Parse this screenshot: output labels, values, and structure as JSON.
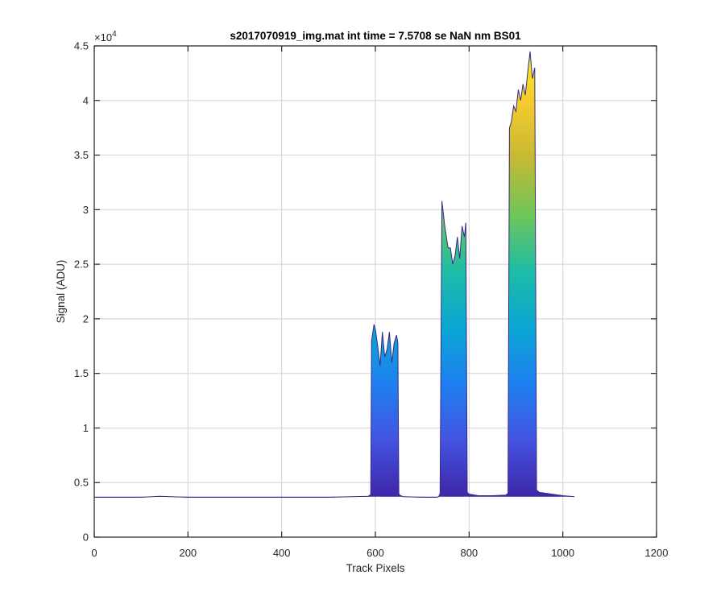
{
  "chart_data": {
    "type": "area",
    "title": "s2017070919_img.mat int time = 7.5708 se  NaN nm BS01",
    "xlabel": "Track Pixels",
    "ylabel": "Signal (ADU)",
    "y_exponent_label": "×10",
    "y_exponent_power": "4",
    "xlim": [
      0,
      1200
    ],
    "ylim": [
      0,
      45000
    ],
    "x_ticks": [
      0,
      200,
      400,
      600,
      800,
      1000,
      1200
    ],
    "x_tick_labels": [
      "0",
      "200",
      "400",
      "600",
      "800",
      "1000",
      "1200"
    ],
    "y_ticks": [
      0,
      5000,
      10000,
      15000,
      20000,
      25000,
      30000,
      35000,
      40000,
      45000
    ],
    "y_tick_labels": [
      "0",
      "0.5",
      "1",
      "1.5",
      "2",
      "2.5",
      "3",
      "3.5",
      "4",
      "4.5"
    ],
    "grid": true,
    "colormap": [
      "#3e26a8",
      "#4353e0",
      "#1e80f0",
      "#0ba6d3",
      "#1ebca6",
      "#6ec65a",
      "#c5b935",
      "#f5ca2d",
      "#f9f617"
    ],
    "baseline": 3700,
    "series": [
      {
        "x": [
          0,
          100,
          140,
          200,
          300,
          400,
          500,
          550,
          585,
          590,
          592,
          597,
          600,
          605,
          610,
          615,
          620,
          625,
          630,
          635,
          640,
          645,
          648,
          650,
          652,
          660,
          700,
          730,
          735,
          738,
          742,
          748,
          755,
          760,
          765,
          770,
          775,
          780,
          785,
          790,
          793,
          796,
          800,
          820,
          850,
          878,
          883,
          886,
          890,
          895,
          900,
          905,
          910,
          915,
          920,
          925,
          930,
          935,
          940,
          944,
          950,
          1000,
          1025
        ],
        "y": [
          3650,
          3650,
          3750,
          3650,
          3650,
          3650,
          3650,
          3700,
          3750,
          3900,
          18000,
          19500,
          19000,
          17500,
          15700,
          18800,
          16500,
          17200,
          18800,
          16000,
          17800,
          18500,
          17800,
          4000,
          3850,
          3700,
          3650,
          3650,
          3700,
          4000,
          30800,
          28500,
          26500,
          26500,
          25000,
          25800,
          27500,
          25500,
          28500,
          27500,
          28800,
          4100,
          3950,
          3800,
          3800,
          3850,
          4000,
          37500,
          38000,
          39500,
          39000,
          41000,
          40000,
          41500,
          40500,
          42500,
          44500,
          42000,
          43000,
          4300,
          4100,
          3800,
          3700
        ]
      }
    ]
  }
}
